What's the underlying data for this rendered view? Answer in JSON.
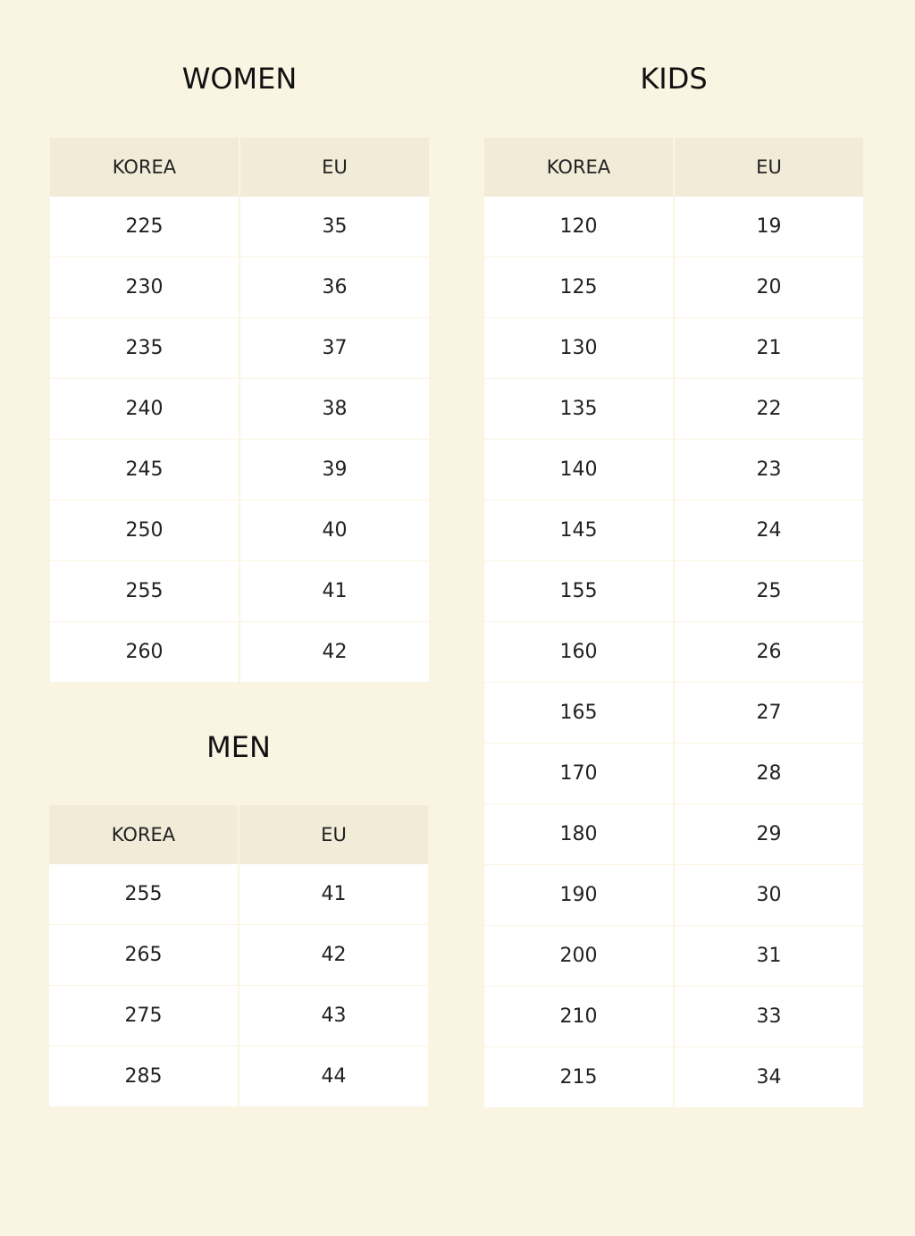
{
  "women": {
    "title": "WOMEN",
    "header": [
      "KOREA",
      "EU"
    ],
    "rows": [
      [
        225,
        35
      ],
      [
        230,
        36
      ],
      [
        235,
        37
      ],
      [
        240,
        38
      ],
      [
        245,
        39
      ],
      [
        250,
        40
      ],
      [
        255,
        41
      ],
      [
        260,
        42
      ]
    ]
  },
  "men": {
    "title": "MEN",
    "header": [
      "KOREA",
      "EU"
    ],
    "rows": [
      [
        255,
        41
      ],
      [
        265,
        42
      ],
      [
        275,
        43
      ],
      [
        285,
        44
      ]
    ]
  },
  "kids": {
    "title": "KIDS",
    "header": [
      "KOREA",
      "EU"
    ],
    "rows": [
      [
        120,
        19
      ],
      [
        125,
        20
      ],
      [
        130,
        21
      ],
      [
        135,
        22
      ],
      [
        140,
        23
      ],
      [
        145,
        24
      ],
      [
        155,
        25
      ],
      [
        160,
        26
      ],
      [
        165,
        27
      ],
      [
        170,
        28
      ],
      [
        180,
        29
      ],
      [
        190,
        30
      ],
      [
        200,
        31
      ],
      [
        210,
        33
      ],
      [
        215,
        34
      ]
    ]
  }
}
